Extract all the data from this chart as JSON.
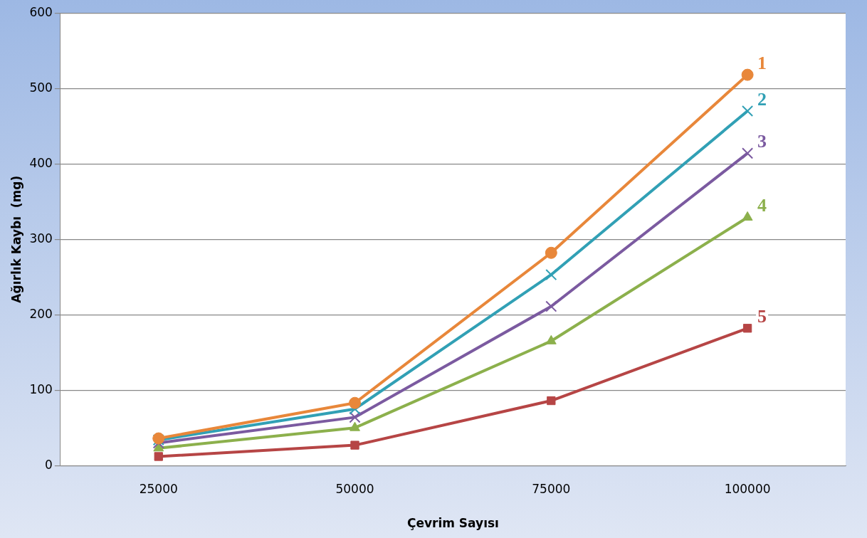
{
  "chart_data": {
    "type": "line",
    "xlabel": "Çevrim Sayısı",
    "ylabel": "Ağırlık Kaybı  (mg)",
    "categories": [
      "25000",
      "50000",
      "75000",
      "100000"
    ],
    "ylim": [
      0,
      600
    ],
    "yticks": [
      0,
      100,
      200,
      300,
      400,
      500,
      600
    ],
    "grid": "y",
    "legend": false,
    "series": [
      {
        "name": "1",
        "color": "#e8873a",
        "marker": "circle",
        "values": [
          36,
          83,
          282,
          518
        ]
      },
      {
        "name": "2",
        "color": "#31a0b5",
        "marker": "cross",
        "values": [
          34,
          75,
          253,
          470
        ]
      },
      {
        "name": "3",
        "color": "#7b5aa0",
        "marker": "cross",
        "values": [
          30,
          64,
          211,
          414
        ]
      },
      {
        "name": "4",
        "color": "#8cb04c",
        "marker": "triangle",
        "values": [
          23,
          50,
          165,
          329
        ]
      },
      {
        "name": "5",
        "color": "#b64545",
        "marker": "square",
        "values": [
          12,
          27,
          86,
          182
        ]
      }
    ]
  }
}
